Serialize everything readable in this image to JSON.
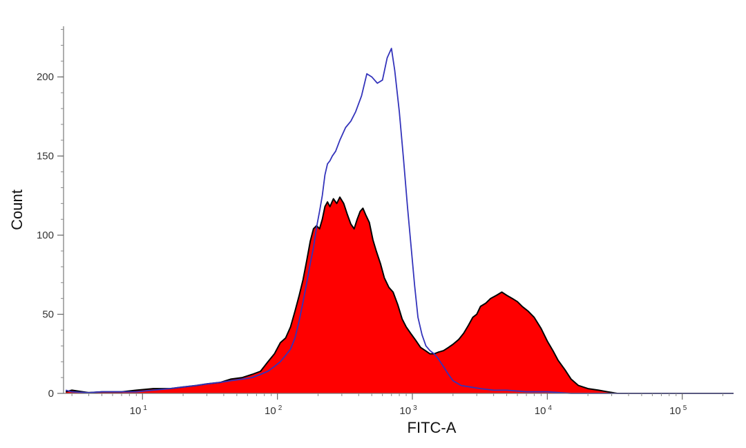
{
  "chart_data": {
    "type": "area",
    "xlabel": "FITC-A",
    "ylabel": "Count",
    "x_scale": "log",
    "xlim": [
      2.6,
      240000
    ],
    "ylim": [
      0,
      232
    ],
    "y_ticks": [
      {
        "value": 0,
        "label": "0"
      },
      {
        "value": 50,
        "label": "50"
      },
      {
        "value": 100,
        "label": "100"
      },
      {
        "value": 150,
        "label": "150"
      },
      {
        "value": 200,
        "label": "200"
      }
    ],
    "x_ticks": [
      {
        "value": 10,
        "base": "10",
        "exp": "1"
      },
      {
        "value": 100,
        "base": "10",
        "exp": "2"
      },
      {
        "value": 1000,
        "base": "10",
        "exp": "3"
      },
      {
        "value": 10000,
        "base": "10",
        "exp": "4"
      },
      {
        "value": 100000,
        "base": "10",
        "exp": "5"
      }
    ],
    "grid": false,
    "legend": "none",
    "series": [
      {
        "style": "filled",
        "color": "#ff0000",
        "outline_color": "#000000",
        "points": [
          [
            2.7,
            1
          ],
          [
            3,
            2
          ],
          [
            4,
            0.5
          ],
          [
            5,
            1
          ],
          [
            7,
            1
          ],
          [
            9,
            2
          ],
          [
            12,
            3
          ],
          [
            16,
            3
          ],
          [
            20,
            4
          ],
          [
            25,
            5
          ],
          [
            30,
            6
          ],
          [
            38,
            7
          ],
          [
            45,
            9
          ],
          [
            55,
            10
          ],
          [
            65,
            12
          ],
          [
            75,
            14
          ],
          [
            85,
            20
          ],
          [
            95,
            25
          ],
          [
            105,
            32
          ],
          [
            115,
            35
          ],
          [
            125,
            42
          ],
          [
            135,
            52
          ],
          [
            145,
            62
          ],
          [
            155,
            72
          ],
          [
            165,
            84
          ],
          [
            175,
            96
          ],
          [
            185,
            104
          ],
          [
            195,
            106
          ],
          [
            205,
            104
          ],
          [
            215,
            110
          ],
          [
            225,
            118
          ],
          [
            235,
            121
          ],
          [
            245,
            118
          ],
          [
            260,
            123
          ],
          [
            275,
            120
          ],
          [
            290,
            124
          ],
          [
            310,
            120
          ],
          [
            330,
            113
          ],
          [
            350,
            107
          ],
          [
            370,
            104
          ],
          [
            390,
            110
          ],
          [
            410,
            115
          ],
          [
            430,
            117
          ],
          [
            450,
            113
          ],
          [
            480,
            108
          ],
          [
            510,
            97
          ],
          [
            540,
            90
          ],
          [
            580,
            82
          ],
          [
            620,
            73
          ],
          [
            670,
            67
          ],
          [
            720,
            64
          ],
          [
            780,
            56
          ],
          [
            840,
            47
          ],
          [
            900,
            42
          ],
          [
            970,
            38
          ],
          [
            1050,
            34
          ],
          [
            1150,
            29
          ],
          [
            1250,
            27
          ],
          [
            1350,
            25
          ],
          [
            1450,
            25
          ],
          [
            1550,
            26
          ],
          [
            1700,
            27
          ],
          [
            1850,
            29
          ],
          [
            2000,
            31
          ],
          [
            2200,
            34
          ],
          [
            2400,
            38
          ],
          [
            2600,
            43
          ],
          [
            2800,
            48
          ],
          [
            3000,
            50
          ],
          [
            3200,
            55
          ],
          [
            3500,
            57
          ],
          [
            3800,
            60
          ],
          [
            4200,
            62
          ],
          [
            4600,
            64
          ],
          [
            5000,
            62
          ],
          [
            5500,
            60
          ],
          [
            6000,
            58
          ],
          [
            6500,
            55
          ],
          [
            7200,
            52
          ],
          [
            8000,
            48
          ],
          [
            9000,
            41
          ],
          [
            10000,
            33
          ],
          [
            11000,
            27
          ],
          [
            12000,
            21
          ],
          [
            13500,
            15
          ],
          [
            15000,
            9
          ],
          [
            17000,
            5
          ],
          [
            20000,
            3
          ],
          [
            24000,
            2
          ],
          [
            28000,
            1
          ],
          [
            33000,
            0
          ],
          [
            40000,
            0
          ],
          [
            240000,
            0
          ]
        ]
      },
      {
        "style": "line",
        "color": "#3333bb",
        "points": [
          [
            2.7,
            2
          ],
          [
            3,
            1
          ],
          [
            4,
            0.5
          ],
          [
            5,
            1
          ],
          [
            7,
            1
          ],
          [
            9,
            1
          ],
          [
            12,
            2
          ],
          [
            16,
            3
          ],
          [
            20,
            4
          ],
          [
            25,
            5
          ],
          [
            30,
            6
          ],
          [
            38,
            7
          ],
          [
            45,
            8
          ],
          [
            55,
            9
          ],
          [
            65,
            10
          ],
          [
            75,
            12
          ],
          [
            85,
            14
          ],
          [
            95,
            17
          ],
          [
            105,
            20
          ],
          [
            115,
            24
          ],
          [
            125,
            28
          ],
          [
            135,
            35
          ],
          [
            145,
            46
          ],
          [
            155,
            58
          ],
          [
            165,
            70
          ],
          [
            175,
            82
          ],
          [
            185,
            92
          ],
          [
            195,
            105
          ],
          [
            205,
            115
          ],
          [
            215,
            125
          ],
          [
            225,
            138
          ],
          [
            235,
            145
          ],
          [
            245,
            147
          ],
          [
            255,
            150
          ],
          [
            270,
            153
          ],
          [
            290,
            160
          ],
          [
            320,
            168
          ],
          [
            350,
            172
          ],
          [
            380,
            178
          ],
          [
            420,
            188
          ],
          [
            460,
            202
          ],
          [
            500,
            200
          ],
          [
            550,
            196
          ],
          [
            600,
            198
          ],
          [
            650,
            212
          ],
          [
            700,
            218
          ],
          [
            740,
            204
          ],
          [
            800,
            178
          ],
          [
            860,
            148
          ],
          [
            920,
            118
          ],
          [
            980,
            92
          ],
          [
            1040,
            68
          ],
          [
            1100,
            48
          ],
          [
            1180,
            37
          ],
          [
            1260,
            30
          ],
          [
            1350,
            27
          ],
          [
            1450,
            25
          ],
          [
            1550,
            22
          ],
          [
            1700,
            17
          ],
          [
            1850,
            12
          ],
          [
            2000,
            8
          ],
          [
            2300,
            5
          ],
          [
            2700,
            4
          ],
          [
            3200,
            3
          ],
          [
            4000,
            2
          ],
          [
            5000,
            2
          ],
          [
            7000,
            1
          ],
          [
            10000,
            1
          ],
          [
            15000,
            0
          ],
          [
            240000,
            0
          ]
        ]
      }
    ]
  }
}
